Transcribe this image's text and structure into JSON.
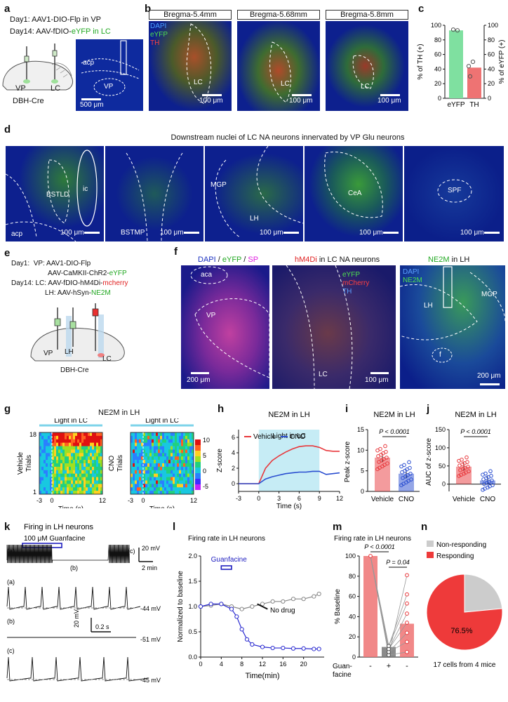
{
  "panels": {
    "a": {
      "label": "a",
      "line1": "Day1: AAV1-DIO-Flp in VP",
      "line2_prefix": "Day14: AAV-fDIO-",
      "line2_green": "eYFP in LC",
      "mouse": "DBH-Cre",
      "vp": "VP",
      "lc": "LC",
      "acp": "acp",
      "vp_img": "VP",
      "scale": "500 μm"
    },
    "b": {
      "label": "b",
      "titles": [
        "Bregma-5.4mm",
        "Bregma-5.68mm",
        "Bregma-5.8mm"
      ],
      "legend": [
        "DAPI",
        "eYFP",
        "TH"
      ],
      "lc": "LC",
      "scale": "100 μm"
    },
    "c": {
      "label": "c",
      "yleft": "% of TH (+)",
      "yright": "% of eYFP (+)",
      "cats": [
        "eYFP",
        "TH"
      ],
      "ticks": [
        "0",
        "20",
        "40",
        "60",
        "80",
        "100"
      ]
    },
    "d": {
      "label": "d",
      "title": "Downstream nuclei of LC NA neurons innervated by VP Glu neurons",
      "regions": [
        "BSTLD",
        "ic",
        "acp",
        "BSTMP",
        "MGP",
        "LH",
        "CeA",
        "SPF"
      ],
      "scale": "100 μm"
    },
    "e": {
      "label": "e",
      "l1a": "Day1:",
      "l1b": "VP: AAV1-DIO-Flp",
      "l2": "AAV-CaMKII-ChR2-",
      "l2g": "eYFP",
      "l3": "Day14:  LC: AAV-fDIO-hM4Di-",
      "l3r": "mcherry",
      "l4": "LH: AAV-hSyn-",
      "l4g": "NE2M",
      "mouse": "DBH-Cre",
      "vp": "VP",
      "lh": "LH",
      "lc": "LC"
    },
    "f": {
      "label": "f",
      "t1a": "DAPI",
      "t1b": "eYFP",
      "t1c": "SP",
      "sep": "/",
      "t2a": "hM4Di",
      "t2b": " in LC NA neurons",
      "t3a": "NE2M",
      "t3b": " in LH",
      "aca": "aca",
      "vp": "VP",
      "lc": "LC",
      "leg2": [
        "eYFP",
        "mCherry",
        "TH"
      ],
      "leg3": [
        "DAPI",
        "NE2M"
      ],
      "lh": "LH",
      "mgp": "MGP",
      "f": "f",
      "s1": "200 μm",
      "s2": "100 μm",
      "s3": "200 μm"
    },
    "g": {
      "label": "g",
      "title": "NE2M in LH",
      "light": "Light in LC",
      "row1": "Vehicle",
      "row2": "CNO",
      "trials": "Trials",
      "t18": "18",
      "t1": "1",
      "xticks": [
        "-3",
        "0",
        "12"
      ],
      "xlabel": "Time (s)",
      "cbar": [
        "10",
        "5",
        "0",
        "-5"
      ]
    },
    "h": {
      "label": "h",
      "title": "NE2M in LH",
      "leg1": "Vehicle",
      "leg2": "CNO",
      "light": "Light in LC",
      "ylabel": "Z-score",
      "xlabel": "Time (s)",
      "xticks": [
        "-3",
        "0",
        "3",
        "6",
        "9",
        "12"
      ],
      "yticks": [
        "0",
        "2",
        "4",
        "6"
      ]
    },
    "i": {
      "label": "i",
      "title": "NE2M in LH",
      "ylabel": "Peak z-score",
      "p": "P < 0.0001",
      "cats": [
        "Vehicle",
        "CNO"
      ],
      "yticks": [
        "0",
        "5",
        "10",
        "15"
      ]
    },
    "j": {
      "label": "j",
      "title": "NE2M in LH",
      "ylabel": "AUC of z-score",
      "p": "P < 0.0001",
      "cats": [
        "Vehicle",
        "CNO"
      ],
      "yticks": [
        "0",
        "50",
        "100",
        "150"
      ]
    },
    "k": {
      "label": "k",
      "title": "Firing in LH neurons",
      "drug": "100 μM Guanfacine",
      "a": "(a)",
      "b": "(b)",
      "c": "(c)",
      "s1": "20 mV",
      "s2": "2 min",
      "s3": "20 mV",
      "s4": "0.2 s",
      "v1": "-44 mV",
      "v2": "-51 mV",
      "v3": "-45 mV"
    },
    "l": {
      "label": "l",
      "title": "Firing rate in LH neurons",
      "drug": "Guanfacine",
      "nodrug": "No drug",
      "ylabel": "Normalized to baseline",
      "xlabel": "Time(min)",
      "xticks": [
        "0",
        "4",
        "8",
        "12",
        "16",
        "20"
      ],
      "yticks": [
        "0.0",
        "0.5",
        "1.0",
        "1.5",
        "2.0"
      ]
    },
    "m": {
      "label": "m",
      "title": "Firing rate in LH neurons",
      "p1": "P < 0.0001",
      "p2": "P = 0.04",
      "ylabel": "% Baseline",
      "yticks": [
        "0",
        "20",
        "40",
        "60",
        "80",
        "100"
      ],
      "xlab": "Guan-\nfacine",
      "xvals": [
        "-",
        "+",
        "-"
      ]
    },
    "n": {
      "label": "n",
      "leg1": "Non-responding",
      "leg2": "Responding",
      "pct": "76.5%",
      "caption": "17 cells from 4 mice"
    }
  },
  "colors": {
    "green": "#22c222",
    "red": "#e8383c",
    "blue": "#2a4ed0",
    "cyan": "#7dd3ea",
    "magenta": "#e040e0",
    "navy": "#0b1f8a",
    "salmon": "#ee7373",
    "mint": "#7fe0a0",
    "grey": "#cccccc"
  },
  "chart_data": [
    {
      "type": "bar",
      "panel": "c",
      "categories": [
        "eYFP",
        "TH"
      ],
      "values": [
        93,
        42
      ],
      "ylim": [
        0,
        100
      ],
      "ylabel": "% of TH (+)",
      "y2label": "% of eYFP (+)"
    },
    {
      "type": "line",
      "panel": "h",
      "title": "NE2M in LH",
      "xlabel": "Time (s)",
      "ylabel": "Z-score",
      "xlim": [
        -3,
        12
      ],
      "ylim": [
        -1,
        7
      ],
      "series": [
        {
          "name": "Vehicle",
          "x": [
            -3,
            -1,
            0,
            1,
            2,
            3,
            4,
            5,
            6,
            7,
            8,
            9,
            10,
            11,
            12
          ],
          "values": [
            0,
            0,
            0,
            2.0,
            3.0,
            3.6,
            4.1,
            4.5,
            4.8,
            4.9,
            4.9,
            4.7,
            4.3,
            4.2,
            4.2
          ]
        },
        {
          "name": "CNO",
          "x": [
            -3,
            -1,
            0,
            1,
            2,
            3,
            4,
            5,
            6,
            7,
            8,
            9,
            10,
            11,
            12
          ],
          "values": [
            0,
            0,
            0,
            0.6,
            0.9,
            1.1,
            1.3,
            1.4,
            1.5,
            1.5,
            1.6,
            1.6,
            1.2,
            1.3,
            1.4
          ]
        }
      ]
    },
    {
      "type": "bar",
      "panel": "i",
      "title": "NE2M in LH",
      "categories": [
        "Vehicle",
        "CNO"
      ],
      "values": [
        8.2,
        4.3
      ],
      "ylim": [
        0,
        15
      ],
      "ylabel": "Peak z-score"
    },
    {
      "type": "bar",
      "panel": "j",
      "title": "NE2M in LH",
      "categories": [
        "Vehicle",
        "CNO"
      ],
      "values": [
        48,
        10
      ],
      "ylim": [
        -20,
        150
      ],
      "ylabel": "AUC of z-score"
    },
    {
      "type": "line",
      "panel": "l",
      "title": "Firing rate in LH neurons",
      "xlabel": "Time(min)",
      "ylabel": "Normalized to baseline",
      "xlim": [
        0,
        24
      ],
      "ylim": [
        0,
        2
      ],
      "series": [
        {
          "name": "No drug",
          "x": [
            0,
            2,
            4,
            6,
            8,
            10,
            12,
            14,
            16,
            18,
            20,
            22,
            23
          ],
          "values": [
            1.0,
            1.02,
            1.05,
            1.0,
            0.95,
            1.0,
            1.05,
            1.1,
            1.1,
            1.15,
            1.15,
            1.2,
            1.25
          ]
        },
        {
          "name": "Guanfacine",
          "x": [
            0,
            2,
            4,
            6,
            7,
            8,
            9,
            10,
            12,
            14,
            16,
            18,
            20,
            22,
            23
          ],
          "values": [
            1.0,
            1.05,
            1.05,
            0.95,
            0.8,
            0.55,
            0.35,
            0.25,
            0.2,
            0.18,
            0.18,
            0.17,
            0.17,
            0.16,
            0.16
          ]
        }
      ]
    },
    {
      "type": "bar",
      "panel": "m",
      "categories": [
        "-",
        "+",
        "-"
      ],
      "values": [
        100,
        10,
        33
      ],
      "ylim": [
        0,
        100
      ],
      "ylabel": "% Baseline"
    },
    {
      "type": "pie",
      "panel": "n",
      "categories": [
        "Non-responding",
        "Responding"
      ],
      "values": [
        23.5,
        76.5
      ]
    }
  ]
}
